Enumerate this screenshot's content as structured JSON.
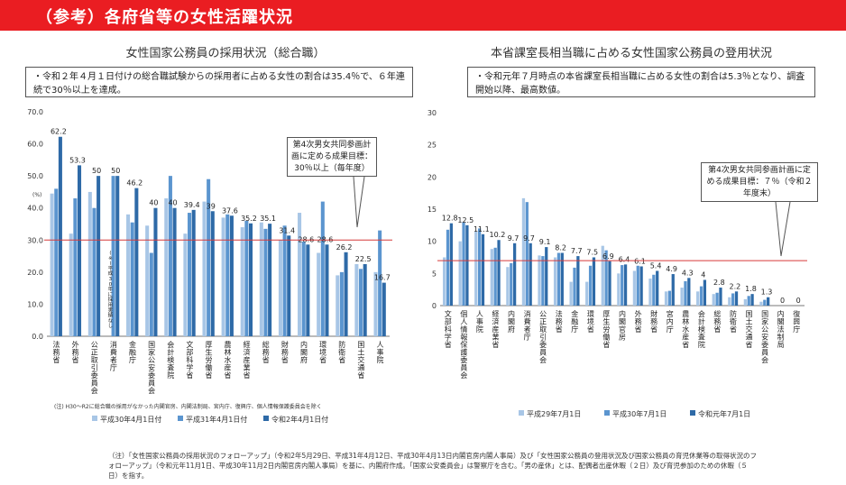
{
  "banner": {
    "title": "（参考）各府省等の女性活躍状況"
  },
  "colors": {
    "banner": "#ea1d22",
    "series": [
      "#a8c6e6",
      "#5b95cf",
      "#2e6aa7"
    ],
    "target_line": "#d63a3a"
  },
  "left": {
    "title": "女性国家公務員の採用状況（総合職）",
    "note": "・令和２年４月１日付けの総合職試験からの採用者に占める女性の割合は35.4％で、６年連続で30％以上を達成。",
    "callout": "第4次男女共同参画計画に定める成果目標：30％以上（毎年度）",
    "unit": "(%)",
    "special_note": "(※)平成30年に採用実績なし",
    "exclusion_note": "(注) H30〜R2に総合職の採用がなかった内閣官房、内閣法制局、宮内庁、復興庁、個人情報保護委員会を除く"
  },
  "right": {
    "title": "本省課室長相当職に占める女性国家公務員の登用状況",
    "note": "・令和元年７月時点の本省課室長相当職に占める女性の割合は5.3％となり、調査開始以降、最高数値。",
    "callout": "第4次男女共同参画計画に定める成果目標：７％（令和２年度末）"
  },
  "footnote": "（注）「女性国家公務員の採用状況のフォローアップ」（令和2年5月29日、平成31年4月12日、平成30年4月13日内閣官房内閣人事局）及び「女性国家公務員の登用状況及び国家公務員の育児休業等の取得状況のフォローアップ」（令和元年11月1日、平成30年11月2日内閣官房内閣人事局）を基に、内閣府作成。「国家公安委員会」は警察庁を含む。「男の産休」とは、配偶者出産休暇（２日）及び育児参加のための休暇（５日）を指す。",
  "chart_data": [
    {
      "type": "bar",
      "title": "女性国家公務員の採用状況（総合職）",
      "categories": [
        "法務省",
        "外務省",
        "公正取引委員会",
        "消費者庁",
        "金融庁",
        "国家公安委員会",
        "会計検査院",
        "文部科学省",
        "厚生労働省",
        "農林水産省",
        "経済産業省",
        "総務省",
        "財務省",
        "内閣府",
        "環境省",
        "防衛省",
        "国土交通省",
        "人事院"
      ],
      "series": [
        {
          "name": "平成30年4月1日付",
          "values": [
            44.5,
            32.0,
            45.0,
            null,
            38.0,
            34.5,
            43.0,
            32.0,
            42.0,
            37.0,
            34.0,
            35.5,
            30.0,
            38.5,
            26.0,
            19.0,
            22.5,
            20.0
          ]
        },
        {
          "name": "平成31年4月1日付",
          "values": [
            46.0,
            43.0,
            40.0,
            50.0,
            35.5,
            26.0,
            50.0,
            38.5,
            49.0,
            38.0,
            36.0,
            33.5,
            34.5,
            29.5,
            42.0,
            20.0,
            21.0,
            33.0
          ]
        },
        {
          "name": "令和2年4月1日付",
          "values": [
            62.2,
            53.3,
            50.0,
            50.0,
            46.2,
            40.0,
            40.0,
            39.4,
            39.0,
            37.6,
            35.2,
            35.1,
            31.4,
            28.6,
            28.6,
            26.2,
            22.5,
            16.7
          ]
        }
      ],
      "data_labels": [
        "62.2",
        "53.3",
        "50",
        "50",
        "46.2",
        "40",
        "40",
        "39.4",
        "39",
        "37.6",
        "35.2",
        "35.1",
        "31.4",
        "28.6",
        "28.6",
        "26.2",
        "22.5",
        "16.7"
      ],
      "ylim": [
        0,
        70
      ],
      "yticks": [
        "0.0",
        "10.0",
        "20.0",
        "30.0",
        "40.0",
        "50.0",
        "60.0",
        "70.0"
      ],
      "target": 30,
      "legend_placement": "bottom",
      "grid": false
    },
    {
      "type": "bar",
      "title": "本省課室長相当職に占める女性国家公務員の登用状況",
      "categories": [
        "文部科学省",
        "個人情報保護委員会",
        "人事院",
        "経済産業省",
        "内閣府",
        "消費者庁",
        "公正取引委員会",
        "法務省",
        "金融庁",
        "環境省",
        "厚生労働省",
        "内閣官房",
        "外務省",
        "財務省",
        "宮内庁",
        "農林水産省",
        "会計検査院",
        "総務省",
        "防衛省",
        "国土交通省",
        "国家公安委員会",
        "内閣法制局",
        "復興庁"
      ],
      "series": [
        {
          "name": "平成29年7月1日",
          "values": [
            7.5,
            10.0,
            11.5,
            8.8,
            6.0,
            16.7,
            7.8,
            7.5,
            3.7,
            3.7,
            9.3,
            5.0,
            5.4,
            4.2,
            2.2,
            2.8,
            2.2,
            1.8,
            1.3,
            1.0,
            0.6,
            0,
            0
          ]
        },
        {
          "name": "平成30年7月1日",
          "values": [
            11.8,
            13.0,
            12.0,
            9.0,
            6.6,
            16.1,
            7.7,
            8.2,
            5.9,
            6.2,
            8.6,
            6.3,
            6.2,
            4.8,
            2.3,
            3.8,
            3.0,
            2.0,
            1.9,
            1.5,
            0.9,
            0,
            0
          ]
        },
        {
          "name": "令和元年7月1日",
          "values": [
            12.8,
            12.5,
            11.1,
            10.2,
            9.7,
            9.7,
            9.1,
            8.2,
            7.7,
            7.5,
            6.9,
            6.4,
            6.1,
            5.4,
            4.9,
            4.3,
            4.0,
            2.8,
            2.2,
            1.8,
            1.3,
            0,
            0
          ]
        }
      ],
      "data_labels": [
        "12.8",
        "12.5",
        "11.1",
        "10.2",
        "9.7",
        "9.7",
        "9.1",
        "8.2",
        "7.7",
        "7.5",
        "6.9",
        "6.4",
        "6.1",
        "5.4",
        "4.9",
        "4.3",
        "4",
        "2.8",
        "2.2",
        "1.8",
        "1.3",
        "0",
        "0"
      ],
      "ylim": [
        0,
        30
      ],
      "yticks": [
        "0",
        "5",
        "10",
        "15",
        "20",
        "25",
        "30"
      ],
      "target": 7,
      "legend_placement": "bottom",
      "grid": false
    }
  ]
}
